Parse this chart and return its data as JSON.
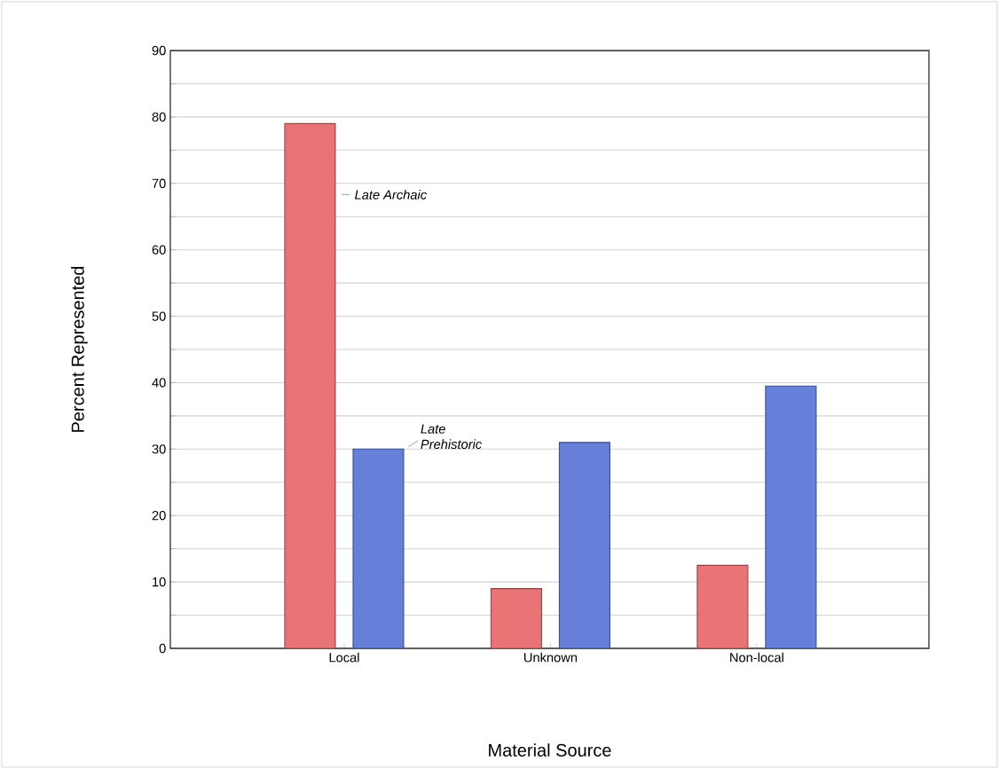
{
  "chart_data": {
    "type": "bar",
    "xlabel": "Material Source",
    "ylabel": "Percent Represented",
    "categories": [
      "Local",
      "Unknown",
      "Non-local"
    ],
    "series": [
      {
        "name": "Late Archaic",
        "color": "#e87475",
        "values": [
          79,
          9,
          12.5
        ]
      },
      {
        "name": "Late Prehistoric",
        "color": "#6680d9",
        "values": [
          30,
          31,
          39.5
        ]
      }
    ],
    "ylim": [
      0,
      90
    ],
    "yticks": [
      0,
      {
        "value": 5,
        "label": null
      },
      10,
      {
        "value": 15,
        "label": null
      },
      20,
      {
        "value": 25,
        "label": null
      },
      30,
      {
        "value": 35,
        "label": null
      },
      40,
      {
        "value": 45,
        "label": null
      },
      50,
      {
        "value": 55,
        "label": null
      },
      60,
      {
        "value": 65,
        "label": null
      },
      70,
      {
        "value": 75,
        "label": null
      },
      80,
      {
        "value": 85,
        "label": null
      },
      90
    ],
    "grid": "y"
  }
}
